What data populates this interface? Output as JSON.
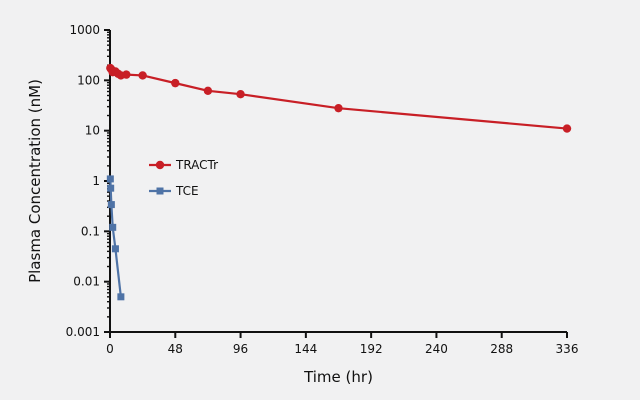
{
  "chart_data": {
    "type": "line",
    "xlabel": "Time (hr)",
    "ylabel": "Plasma Concentration (nM)",
    "y_scale": "log",
    "xlim": [
      0,
      336
    ],
    "ylim": [
      0.001,
      1000
    ],
    "x_ticks": [
      "0",
      "48",
      "96",
      "144",
      "192",
      "240",
      "288",
      "336"
    ],
    "x_tick_values": [
      0,
      48,
      96,
      144,
      192,
      240,
      288,
      336
    ],
    "y_ticks": [
      "0.001",
      "0.01",
      "0.1",
      "1",
      "10",
      "100",
      "1000"
    ],
    "y_tick_values": [
      0.001,
      0.01,
      0.1,
      1,
      10,
      100,
      1000
    ],
    "grid": false,
    "legend_position": "center-left",
    "series": [
      {
        "name": "TRACTr",
        "color": "#c81f26",
        "marker": "circle",
        "x": [
          0.25,
          1,
          2,
          4,
          6,
          8,
          12,
          24,
          48,
          72,
          96,
          168,
          336
        ],
        "y": [
          175,
          165,
          145,
          150,
          135,
          125,
          130,
          125,
          88,
          62,
          53,
          28,
          11
        ]
      },
      {
        "name": "TCE",
        "color": "#4f73a6",
        "marker": "square",
        "x": [
          0.25,
          0.5,
          1,
          2,
          4,
          8
        ],
        "y": [
          1.1,
          0.72,
          0.34,
          0.12,
          0.045,
          0.005
        ]
      }
    ]
  }
}
